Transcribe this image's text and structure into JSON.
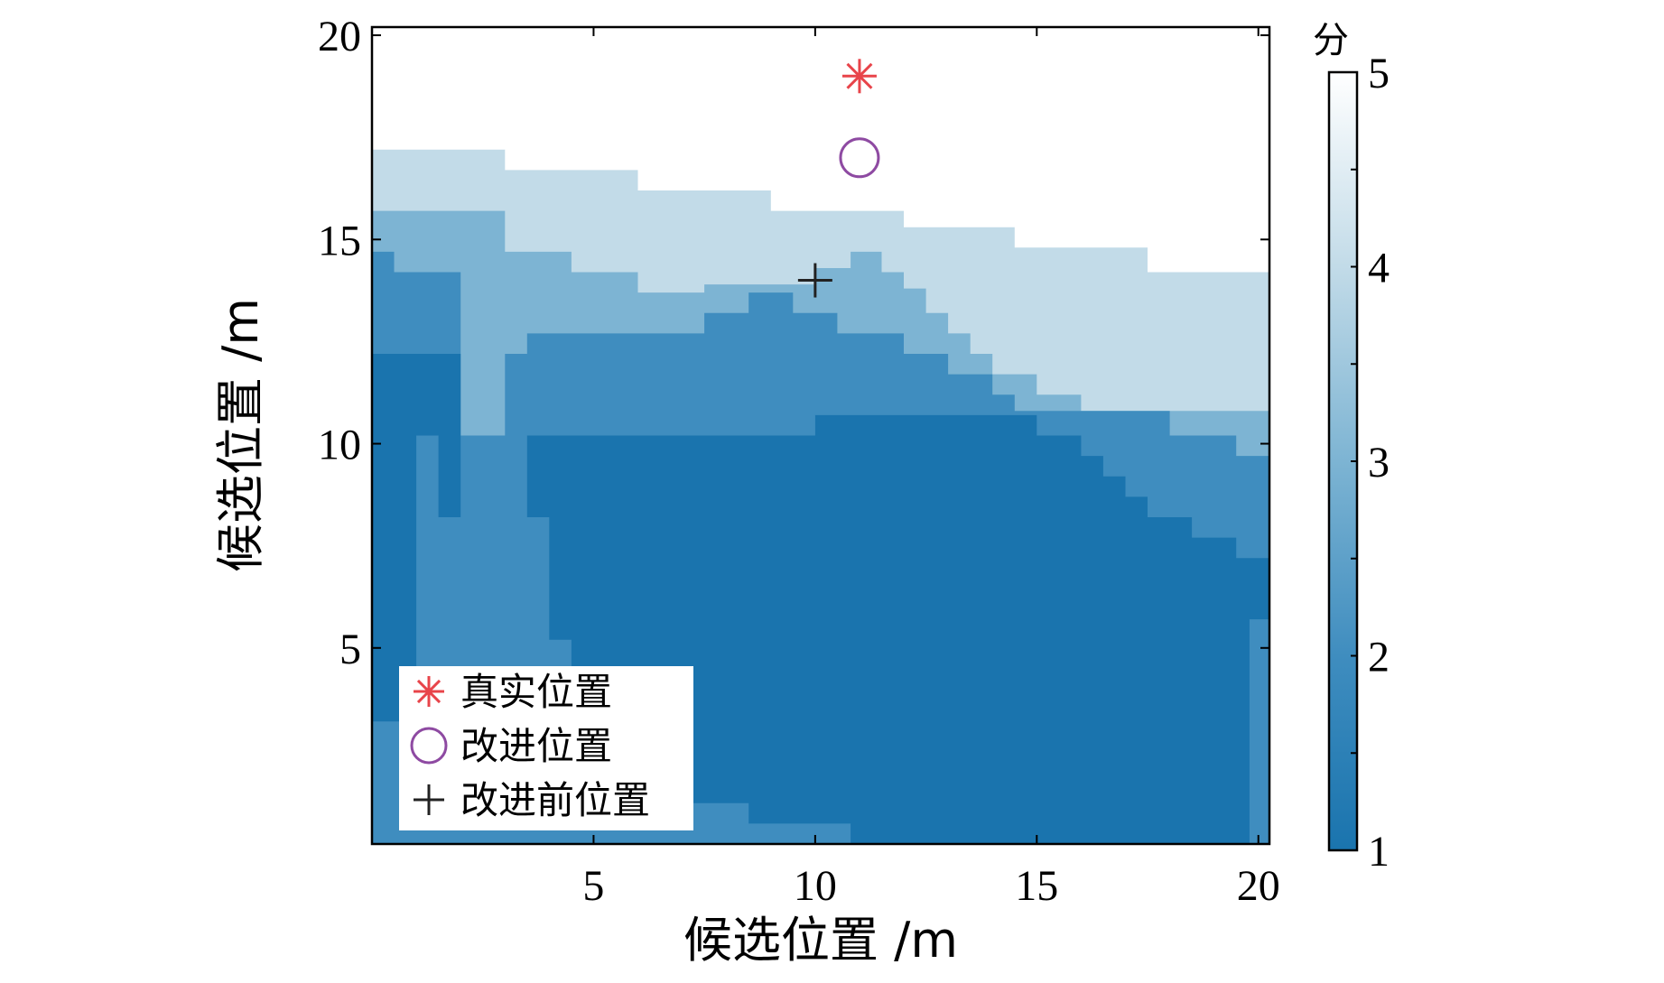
{
  "chart_data": {
    "type": "heatmap",
    "xlabel": "候选位置 /m",
    "ylabel": "候选位置 /m",
    "xlim": [
      0,
      20.25
    ],
    "ylim": [
      0.2,
      20.2
    ],
    "xticks": [
      5,
      10,
      15,
      20
    ],
    "yticks": [
      5,
      10,
      15,
      20
    ],
    "colorbar": {
      "title": "分",
      "range": [
        1,
        5
      ],
      "ticks": [
        1,
        2,
        3,
        4,
        5
      ],
      "colors": [
        "#1a74ae",
        "#3f8dbf",
        "#7db4d3",
        "#c2dbe8",
        "#ffffff"
      ]
    },
    "levels": [
      {
        "score": 4,
        "color": "#c2dbe8",
        "boundary": [
          [
            0,
            17.2
          ],
          [
            3,
            17.2
          ],
          [
            3,
            16.7
          ],
          [
            6,
            16.7
          ],
          [
            6,
            16.2
          ],
          [
            9,
            16.2
          ],
          [
            9,
            15.7
          ],
          [
            12,
            15.7
          ],
          [
            12,
            15.3
          ],
          [
            14.5,
            15.3
          ],
          [
            14.5,
            14.8
          ],
          [
            17.5,
            14.8
          ],
          [
            17.5,
            14.2
          ],
          [
            20.25,
            14.2
          ],
          [
            20.25,
            0.2
          ],
          [
            0,
            0.2
          ]
        ]
      },
      {
        "score": 3,
        "color": "#7db4d3",
        "boundary": [
          [
            0,
            15.7
          ],
          [
            3,
            15.7
          ],
          [
            3,
            14.7
          ],
          [
            4.5,
            14.7
          ],
          [
            4.5,
            14.2
          ],
          [
            6,
            14.2
          ],
          [
            6,
            13.7
          ],
          [
            7.5,
            13.7
          ],
          [
            7.5,
            13.9
          ],
          [
            10,
            13.9
          ],
          [
            10,
            14.3
          ],
          [
            10.8,
            14.3
          ],
          [
            10.8,
            14.7
          ],
          [
            11.5,
            14.7
          ],
          [
            11.5,
            14.2
          ],
          [
            12,
            14.2
          ],
          [
            12,
            13.8
          ],
          [
            12.5,
            13.8
          ],
          [
            12.5,
            13.2
          ],
          [
            13,
            13.2
          ],
          [
            13,
            12.7
          ],
          [
            13.5,
            12.7
          ],
          [
            13.5,
            12.2
          ],
          [
            14,
            12.2
          ],
          [
            14,
            11.7
          ],
          [
            15,
            11.7
          ],
          [
            15,
            11.2
          ],
          [
            16,
            11.2
          ],
          [
            16,
            10.8
          ],
          [
            20.25,
            10.8
          ],
          [
            20.25,
            0.2
          ],
          [
            0,
            0.2
          ]
        ]
      },
      {
        "score": 2,
        "color": "#3f8dbf",
        "boundary": [
          [
            0,
            14.7
          ],
          [
            0.5,
            14.7
          ],
          [
            0.5,
            14.2
          ],
          [
            2,
            14.2
          ],
          [
            2,
            10.2
          ],
          [
            3,
            10.2
          ],
          [
            3,
            12.2
          ],
          [
            3.5,
            12.2
          ],
          [
            3.5,
            12.7
          ],
          [
            7.5,
            12.7
          ],
          [
            7.5,
            13.2
          ],
          [
            8.5,
            13.2
          ],
          [
            8.5,
            13.7
          ],
          [
            9.5,
            13.7
          ],
          [
            9.5,
            13.2
          ],
          [
            10.5,
            13.2
          ],
          [
            10.5,
            12.7
          ],
          [
            12,
            12.7
          ],
          [
            12,
            12.2
          ],
          [
            13,
            12.2
          ],
          [
            13,
            11.7
          ],
          [
            14,
            11.7
          ],
          [
            14,
            11.2
          ],
          [
            14.5,
            11.2
          ],
          [
            14.5,
            10.8
          ],
          [
            18,
            10.8
          ],
          [
            18,
            10.2
          ],
          [
            19.5,
            10.2
          ],
          [
            19.5,
            9.7
          ],
          [
            20.25,
            9.7
          ],
          [
            20.25,
            0.2
          ],
          [
            0,
            0.2
          ]
        ]
      },
      {
        "score": 1,
        "color": "#1a74ae",
        "boundary": [
          [
            0,
            12.2
          ],
          [
            2,
            12.2
          ],
          [
            2,
            8.2
          ],
          [
            1.5,
            8.2
          ],
          [
            1.5,
            10.2
          ],
          [
            1,
            10.2
          ],
          [
            1,
            3.2
          ],
          [
            0,
            3.2
          ]
        ]
      },
      {
        "score": 1,
        "color": "#1a74ae",
        "boundary": [
          [
            3.5,
            10.2
          ],
          [
            10,
            10.2
          ],
          [
            10,
            10.7
          ],
          [
            15,
            10.7
          ],
          [
            15,
            10.2
          ],
          [
            16,
            10.2
          ],
          [
            16,
            9.7
          ],
          [
            16.5,
            9.7
          ],
          [
            16.5,
            9.2
          ],
          [
            17,
            9.2
          ],
          [
            17,
            8.7
          ],
          [
            17.5,
            8.7
          ],
          [
            17.5,
            8.2
          ],
          [
            18.5,
            8.2
          ],
          [
            18.5,
            7.7
          ],
          [
            19.5,
            7.7
          ],
          [
            19.5,
            7.2
          ],
          [
            20.25,
            7.2
          ],
          [
            20.25,
            5.7
          ],
          [
            19.8,
            5.7
          ],
          [
            19.8,
            0.2
          ],
          [
            10.8,
            0.2
          ],
          [
            10.8,
            0.7
          ],
          [
            8.5,
            0.7
          ],
          [
            8.5,
            1.2
          ],
          [
            6,
            1.2
          ],
          [
            6,
            1.7
          ],
          [
            4.5,
            1.7
          ],
          [
            4.5,
            5.2
          ],
          [
            4,
            5.2
          ],
          [
            4,
            8.2
          ],
          [
            3.5,
            8.2
          ]
        ]
      }
    ],
    "markers": [
      {
        "name": "真实位置",
        "shape": "asterisk",
        "color": "#e8444a",
        "x": 11,
        "y": 19
      },
      {
        "name": "改进位置",
        "shape": "circle",
        "color": "#8e4aa2",
        "x": 11,
        "y": 17
      },
      {
        "name": "改进前位置",
        "shape": "plus",
        "color": "#222222",
        "x": 10,
        "y": 14
      }
    ],
    "legend_position": "bottom-left"
  }
}
